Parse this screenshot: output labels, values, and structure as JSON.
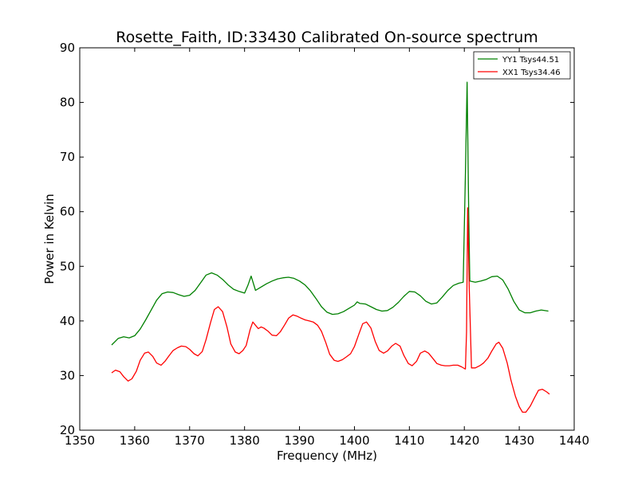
{
  "chart_data": {
    "type": "line",
    "title": "Rosette_Faith, ID:33430 Calibrated On-source spectrum",
    "xlabel": "Frequency (MHz)",
    "ylabel": "Power in Kelvin",
    "xlim": [
      1350,
      1440
    ],
    "ylim": [
      20,
      90
    ],
    "xticks": [
      1350,
      1360,
      1370,
      1380,
      1390,
      1400,
      1410,
      1420,
      1430,
      1440
    ],
    "yticks": [
      20,
      30,
      40,
      50,
      60,
      70,
      80,
      90
    ],
    "grid": false,
    "legend_position": "top-right",
    "series": [
      {
        "name": "YY1 Tsys44.51",
        "color": "#008000",
        "x": [
          1355.8,
          1357,
          1358,
          1359,
          1360,
          1361,
          1362,
          1363,
          1364,
          1365,
          1366,
          1367,
          1368,
          1369,
          1370,
          1371,
          1372,
          1373,
          1374,
          1375,
          1376,
          1377,
          1378,
          1379,
          1380,
          1380.6,
          1381.2,
          1382,
          1383,
          1384,
          1385,
          1386,
          1387,
          1388,
          1389,
          1390,
          1391,
          1392,
          1393,
          1394,
          1395,
          1396,
          1397,
          1398,
          1399,
          1400,
          1400.5,
          1401,
          1402,
          1403,
          1404,
          1405,
          1406,
          1407,
          1408,
          1409,
          1410,
          1411,
          1412,
          1413,
          1414,
          1415,
          1416,
          1417,
          1418,
          1419,
          1419.8,
          1420.2,
          1420.5,
          1420.8,
          1421,
          1422,
          1423,
          1424,
          1425,
          1426,
          1427,
          1428,
          1429,
          1430,
          1431,
          1432,
          1433,
          1434,
          1435.3
        ],
        "y": [
          35.6,
          36.8,
          37.1,
          36.9,
          37.3,
          38.5,
          40.2,
          42,
          43.8,
          45,
          45.3,
          45.2,
          44.8,
          44.5,
          44.7,
          45.6,
          47,
          48.4,
          48.8,
          48.4,
          47.6,
          46.6,
          45.8,
          45.4,
          45.1,
          46.5,
          48.2,
          45.6,
          46.2,
          46.8,
          47.3,
          47.7,
          47.9,
          48,
          47.8,
          47.3,
          46.6,
          45.5,
          44.1,
          42.6,
          41.6,
          41.2,
          41.3,
          41.7,
          42.3,
          42.9,
          43.5,
          43.2,
          43.1,
          42.6,
          42.1,
          41.8,
          41.9,
          42.5,
          43.4,
          44.5,
          45.4,
          45.3,
          44.6,
          43.6,
          43.1,
          43.3,
          44.4,
          45.6,
          46.5,
          46.9,
          47.1,
          67,
          83.7,
          60,
          47.3,
          47.1,
          47.3,
          47.6,
          48.1,
          48.2,
          47.5,
          45.8,
          43.6,
          42,
          41.5,
          41.5,
          41.8,
          42,
          41.8
        ]
      },
      {
        "name": "XX1 Tsys34.46",
        "color": "#ff0000",
        "x": [
          1355.8,
          1356.5,
          1357.3,
          1358,
          1358.8,
          1359.5,
          1360.3,
          1361,
          1361.8,
          1362.5,
          1363.3,
          1364,
          1364.8,
          1365.5,
          1366.3,
          1367,
          1367.8,
          1368.5,
          1369.3,
          1370,
          1370.8,
          1371.5,
          1372.3,
          1373,
          1373.8,
          1374.5,
          1375.2,
          1376,
          1376.8,
          1377.5,
          1378.3,
          1379,
          1379.7,
          1380.3,
          1381,
          1381.5,
          1382,
          1382.5,
          1383,
          1383.5,
          1384.3,
          1385,
          1385.8,
          1386.5,
          1387.3,
          1388,
          1388.8,
          1389.5,
          1390.3,
          1391,
          1391.8,
          1392.5,
          1393.3,
          1394,
          1394.8,
          1395.5,
          1396.3,
          1397,
          1397.8,
          1398.5,
          1399.3,
          1400,
          1400.8,
          1401.5,
          1402.2,
          1403,
          1403.8,
          1404.5,
          1405.3,
          1406,
          1406.8,
          1407.5,
          1408.3,
          1409,
          1409.8,
          1410.5,
          1411.3,
          1412,
          1412.8,
          1413.5,
          1414.3,
          1415,
          1415.8,
          1416.5,
          1417.3,
          1418,
          1418.8,
          1419.5,
          1420,
          1420.2,
          1420.4,
          1420.6,
          1420.9,
          1421.3,
          1422,
          1422.8,
          1423.5,
          1424.3,
          1425,
          1425.8,
          1426.3,
          1427,
          1427.8,
          1428.5,
          1429.3,
          1430,
          1430.6,
          1431.2,
          1432,
          1432.8,
          1433.5,
          1434.2,
          1435,
          1435.5
        ],
        "y": [
          30.5,
          31,
          30.7,
          29.8,
          29,
          29.4,
          30.8,
          32.8,
          34.1,
          34.3,
          33.5,
          32.3,
          31.9,
          32.6,
          33.7,
          34.6,
          35.1,
          35.4,
          35.3,
          34.8,
          34,
          33.6,
          34.4,
          36.6,
          39.7,
          42.1,
          42.6,
          41.7,
          38.9,
          35.8,
          34.3,
          34,
          34.6,
          35.5,
          38.4,
          39.8,
          39.2,
          38.6,
          38.9,
          38.7,
          38.1,
          37.4,
          37.3,
          38,
          39.3,
          40.5,
          41.1,
          40.9,
          40.5,
          40.2,
          40,
          39.8,
          39.2,
          38.1,
          36,
          33.9,
          32.8,
          32.6,
          32.9,
          33.4,
          34,
          35.3,
          37.6,
          39.5,
          39.8,
          38.7,
          36.2,
          34.6,
          34.1,
          34.5,
          35.4,
          35.9,
          35.4,
          33.7,
          32.2,
          31.8,
          32.6,
          34.1,
          34.5,
          34.1,
          33.1,
          32.2,
          31.9,
          31.8,
          31.8,
          31.9,
          31.9,
          31.6,
          31.3,
          31.2,
          38,
          60.7,
          46,
          31.4,
          31.4,
          31.8,
          32.3,
          33.2,
          34.5,
          35.8,
          36.1,
          35,
          32.3,
          29.1,
          26.2,
          24.3,
          23.3,
          23.3,
          24.4,
          26,
          27.3,
          27.5,
          27,
          26.6
        ]
      }
    ]
  }
}
